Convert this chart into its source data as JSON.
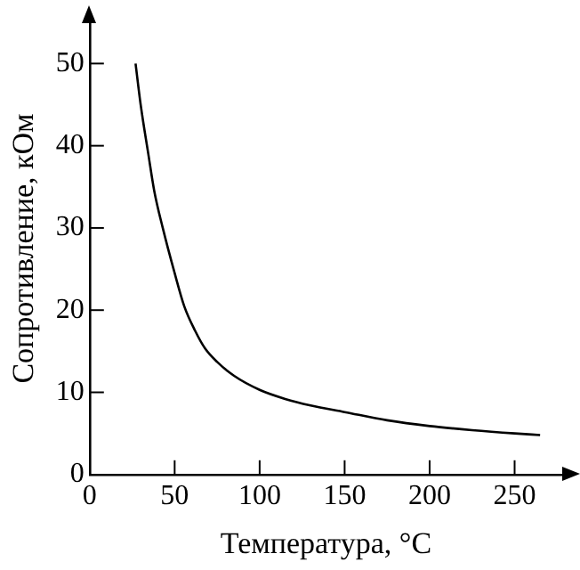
{
  "chart_data": {
    "type": "line",
    "xlabel": "Температура, °C",
    "ylabel": "Сопротивление, кОм",
    "series": [
      {
        "color": "#000000",
        "x": [
          27,
          30,
          34.5,
          38,
          43,
          50,
          55.6,
          62,
          68,
          75,
          85,
          100,
          115,
          130,
          150,
          175,
          200,
          225,
          250,
          265
        ],
        "values": [
          50,
          45,
          39,
          34.5,
          30,
          24.5,
          20.5,
          17.5,
          15.3,
          13.7,
          12,
          10.3,
          9.2,
          8.4,
          7.6,
          6.6,
          5.9,
          5.4,
          5.0,
          4.8
        ]
      }
    ],
    "xlim": [
      0,
      278
    ],
    "xticks": [
      0,
      50,
      100,
      150,
      200,
      250
    ],
    "ylim": [
      0,
      55
    ],
    "yticks": [
      0,
      10,
      20,
      30,
      40,
      50
    ],
    "grid": false,
    "legend": false,
    "marker": "none",
    "line_style": "solid"
  }
}
